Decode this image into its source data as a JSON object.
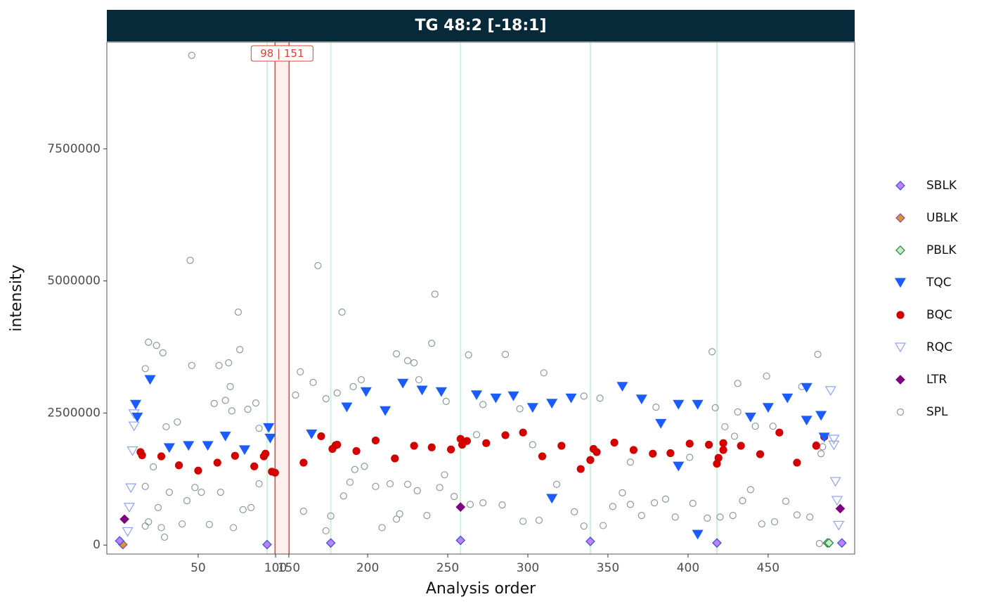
{
  "chart_data": {
    "type": "scatter",
    "title": "TG 48:2 [-18:1]",
    "x_label": "Analysis order",
    "y_label": "intensity",
    "xlim": [
      -7,
      504
    ],
    "ylim": [
      -170000,
      9520000
    ],
    "xticks": [
      50,
      100,
      150,
      200,
      250,
      300,
      350,
      400,
      450
    ],
    "yticks": [
      0,
      2500000,
      5000000,
      7500000
    ],
    "axis_break": {
      "from": 98,
      "to": 151,
      "label": "98 | 151",
      "color": "#e04030"
    },
    "batch_lines": [
      93,
      177,
      258,
      339,
      418
    ],
    "batch_line_color": "#c8f5d8",
    "legend": "right",
    "series": [
      {
        "name": "SBLK",
        "marker": "diamond",
        "fill": "#c080ff",
        "color": "#3050e0",
        "x": [
          1,
          93,
          177,
          258,
          339,
          418,
          496
        ],
        "values": [
          80000,
          10000,
          40000,
          90000,
          70000,
          40000,
          40000
        ]
      },
      {
        "name": "UBLK",
        "marker": "diamond",
        "fill": "#d39a2a",
        "color": "#9040c0",
        "x": [
          3
        ],
        "values": [
          10000
        ]
      },
      {
        "name": "PBLK",
        "marker": "diamond",
        "fill": "#c8f0c8",
        "color": "#208040",
        "x": [
          487,
          488
        ],
        "values": [
          40000,
          40000
        ]
      },
      {
        "name": "TQC",
        "marker": "triangle",
        "fill": "#1a5cff",
        "color": "#1a5cff",
        "x": [
          11,
          12,
          20,
          32,
          44,
          56,
          67,
          79,
          94,
          95,
          165,
          187,
          199,
          211,
          222,
          234,
          246,
          268,
          280,
          291,
          303,
          315,
          315,
          327,
          359,
          371,
          383,
          394,
          394,
          406,
          406,
          439,
          450,
          462,
          474,
          474,
          483,
          485
        ],
        "values": [
          2660000,
          2420000,
          3130000,
          1840000,
          1880000,
          1880000,
          2060000,
          1800000,
          2220000,
          2020000,
          2100000,
          2610000,
          2900000,
          2540000,
          3060000,
          2930000,
          2900000,
          2840000,
          2780000,
          2820000,
          2600000,
          880000,
          2680000,
          2780000,
          3000000,
          2760000,
          2300000,
          1490000,
          2660000,
          200000,
          2660000,
          2420000,
          2600000,
          2780000,
          2980000,
          2360000,
          2450000,
          2040000
        ]
      },
      {
        "name": "BQC",
        "marker": "circle",
        "fill": "#d40000",
        "color": "#d40000",
        "x": [
          14,
          15,
          27,
          38,
          50,
          62,
          73,
          85,
          91,
          92,
          96,
          98,
          160,
          171,
          178,
          180,
          181,
          193,
          205,
          217,
          229,
          240,
          252,
          258,
          259,
          262,
          274,
          286,
          297,
          309,
          321,
          333,
          339,
          341,
          343,
          354,
          366,
          378,
          389,
          401,
          413,
          418,
          419,
          422,
          422,
          433,
          445,
          457,
          468,
          480,
          485
        ],
        "values": [
          1760000,
          1700000,
          1680000,
          1510000,
          1410000,
          1560000,
          1690000,
          1490000,
          1680000,
          1730000,
          1390000,
          1370000,
          1560000,
          2060000,
          1820000,
          1890000,
          1900000,
          1780000,
          1980000,
          1640000,
          1880000,
          1850000,
          1810000,
          2010000,
          1900000,
          1970000,
          1930000,
          2080000,
          2130000,
          1680000,
          1880000,
          1440000,
          1610000,
          1820000,
          1760000,
          1940000,
          1800000,
          1730000,
          1740000,
          1920000,
          1900000,
          1540000,
          1650000,
          1800000,
          1930000,
          1880000,
          1720000,
          2130000,
          1560000,
          1880000,
          2050000
        ]
      },
      {
        "name": "RQC",
        "marker": "triangle-open",
        "fill": "none",
        "color": "#8fa0ff",
        "x": [
          6,
          7,
          8,
          9,
          10,
          10,
          489,
          491,
          491,
          492,
          493,
          494
        ],
        "values": [
          250000,
          710000,
          1080000,
          1780000,
          2250000,
          2480000,
          2920000,
          2000000,
          1890000,
          1200000,
          840000,
          370000
        ]
      },
      {
        "name": "LTR",
        "marker": "diamond",
        "fill": "#800080",
        "color": "#800080",
        "x": [
          4,
          258,
          495
        ],
        "values": [
          490000,
          720000,
          690000
        ]
      },
      {
        "name": "SPL",
        "marker": "circle-open",
        "fill": "none",
        "color": "#8a9a9a",
        "x": [
          46,
          45,
          169,
          242,
          75,
          184,
          76,
          19,
          24,
          28,
          17,
          46,
          63,
          69,
          70,
          218,
          240,
          263,
          286,
          310,
          415,
          481,
          431,
          449,
          158,
          166,
          86,
          60,
          67,
          71,
          81,
          30,
          37,
          88,
          155,
          174,
          181,
          191,
          196,
          225,
          229,
          232,
          249,
          272,
          295,
          335,
          345,
          380,
          417,
          423,
          431,
          442,
          453,
          471,
          480,
          17,
          22,
          32,
          43,
          48,
          52,
          57,
          64,
          72,
          78,
          83,
          88,
          27,
          29,
          17,
          19,
          25,
          40,
          160,
          174,
          177,
          185,
          189,
          192,
          198,
          205,
          209,
          214,
          218,
          220,
          225,
          231,
          237,
          245,
          248,
          254,
          264,
          272,
          284,
          297,
          307,
          318,
          329,
          335,
          347,
          353,
          359,
          364,
          371,
          379,
          386,
          392,
          403,
          412,
          420,
          428,
          434,
          439,
          446,
          454,
          461,
          468,
          476,
          482,
          483,
          484,
          268,
          303,
          364,
          401,
          429
        ],
        "values": [
          9270000,
          5390000,
          5290000,
          4750000,
          4410000,
          4410000,
          3700000,
          3840000,
          3780000,
          3640000,
          3340000,
          3400000,
          3400000,
          3450000,
          3000000,
          3620000,
          3820000,
          3600000,
          3610000,
          3260000,
          3660000,
          3610000,
          3060000,
          3200000,
          3280000,
          3080000,
          2690000,
          2680000,
          2740000,
          2540000,
          2570000,
          2240000,
          2330000,
          2210000,
          2840000,
          2770000,
          2880000,
          3000000,
          3130000,
          3490000,
          3450000,
          3130000,
          2720000,
          2660000,
          2580000,
          2820000,
          2780000,
          2610000,
          2600000,
          2240000,
          2520000,
          2250000,
          2250000,
          3000000,
          1900000,
          1110000,
          1480000,
          1000000,
          840000,
          1090000,
          1000000,
          390000,
          1000000,
          330000,
          670000,
          710000,
          1160000,
          330000,
          150000,
          360000,
          440000,
          710000,
          400000,
          640000,
          270000,
          550000,
          930000,
          1190000,
          1430000,
          1490000,
          1110000,
          330000,
          1160000,
          490000,
          590000,
          1150000,
          1030000,
          560000,
          1090000,
          1330000,
          920000,
          770000,
          800000,
          760000,
          450000,
          470000,
          1150000,
          630000,
          360000,
          370000,
          730000,
          990000,
          770000,
          560000,
          800000,
          870000,
          530000,
          790000,
          510000,
          530000,
          560000,
          840000,
          1050000,
          400000,
          440000,
          830000,
          570000,
          530000,
          30000,
          1730000,
          1860000,
          2090000,
          1900000,
          1570000,
          1660000,
          2060000
        ]
      }
    ]
  }
}
